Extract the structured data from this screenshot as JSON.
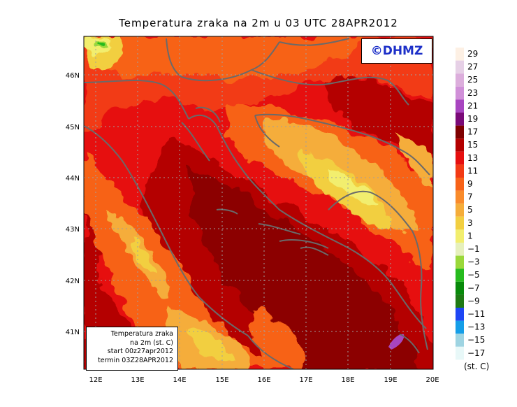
{
  "title": "Temperatura zraka na 2m u 03 UTC 28APR2012",
  "credit": "©DHMZ",
  "info_box": [
    "Temperatura zraka",
    "na 2m (st. C)",
    "start 00z27apr2012",
    "termin 03Z28APR2012"
  ],
  "colors": {
    "water_dark": "#8c0000",
    "water_mid": "#b40000",
    "land_base": "#ee5a14",
    "highland": "#ffd24a",
    "coast_line": "#6a6a6a",
    "credit_text": "#1c2fc8"
  },
  "axes": {
    "x_ticks": [
      "12E",
      "13E",
      "14E",
      "15E",
      "16E",
      "17E",
      "18E",
      "19E",
      "20E"
    ],
    "y_ticks": [
      "46N",
      "45N",
      "44N",
      "43N",
      "42N",
      "41N"
    ],
    "x_range": [
      11.75,
      20
    ],
    "y_range": [
      40.3,
      46.75
    ],
    "grid": true
  },
  "legend": {
    "unit": "(st. C)",
    "values": [
      "29",
      "27",
      "25",
      "23",
      "21",
      "19",
      "17",
      "15",
      "13",
      "11",
      "9",
      "7",
      "5",
      "3",
      "1",
      "−1",
      "−3",
      "−5",
      "−7",
      "−9",
      "−11",
      "−13",
      "−15",
      "−17"
    ],
    "colors": [
      "#fdf0e4",
      "#e6d0e6",
      "#dcaedc",
      "#d090d8",
      "#a845c0",
      "#7a0a78",
      "#7e0000",
      "#b40000",
      "#e60f0f",
      "#f23a14",
      "#f76218",
      "#f98b2b",
      "#f5ad3a",
      "#f2cf41",
      "#f2ee6e",
      "#e6f0bc",
      "#9ad83a",
      "#26bb1e",
      "#088a0b",
      "#1f7a14",
      "#1e46f5",
      "#159ee8",
      "#9ed4e2",
      "#e8f8f8"
    ]
  }
}
